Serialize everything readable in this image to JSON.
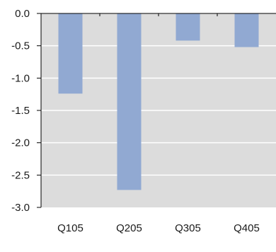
{
  "chart_data": {
    "type": "bar",
    "categories": [
      "Q105",
      "Q205",
      "Q305",
      "Q405"
    ],
    "values": [
      -1.24,
      -2.73,
      -0.42,
      -0.52
    ],
    "title": "",
    "xlabel": "",
    "ylabel": "",
    "ylim": [
      -3.0,
      0.0
    ],
    "yticks": [
      "0.0",
      "-0.5",
      "-1.0",
      "-1.5",
      "-2.0",
      "-2.5",
      "-3.0"
    ],
    "grid": true,
    "legend": "none",
    "colors": {
      "bar": "#91a9d2",
      "plot_background": "#dcdcdc",
      "grid": "#ffffff",
      "axis": "#000000",
      "text": "#1a1a1a"
    }
  }
}
